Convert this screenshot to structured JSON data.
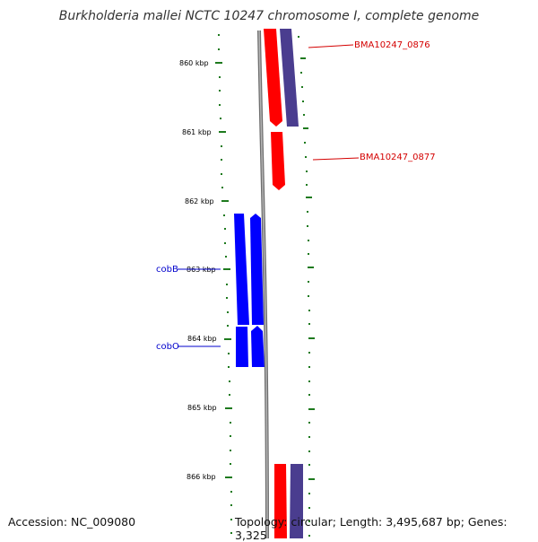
{
  "title": "Burkholderia mallei NCTC 10247 chromosome I, complete genome",
  "footer": {
    "accession": "Accession: NC_009080",
    "topology": "Topology: circular; Length: 3,495,687 bp; Genes: 3,325"
  },
  "colors": {
    "tick": "#1e7a1e",
    "backbone": "#888888",
    "forward_gene": "#ff0000",
    "feature_purple": "#4a3d8f",
    "reverse_gene": "#0000ff",
    "label_red": "#d40000",
    "label_blue": "#0000cc"
  },
  "ticks": [
    {
      "kbp": 860,
      "label": "860 kbp"
    },
    {
      "kbp": 861,
      "label": "861 kbp"
    },
    {
      "kbp": 862,
      "label": "862 kbp"
    },
    {
      "kbp": 863,
      "label": "863 kbp"
    },
    {
      "kbp": 864,
      "label": "864 kbp"
    },
    {
      "kbp": 865,
      "label": "865 kbp"
    },
    {
      "kbp": 866,
      "label": "866 kbp"
    }
  ],
  "gene_labels": [
    {
      "name": "BMA10247_0876",
      "color": "red"
    },
    {
      "name": "BMA10247_0877",
      "color": "red"
    },
    {
      "name": "cobB",
      "color": "blue"
    },
    {
      "name": "cobO",
      "color": "blue"
    }
  ]
}
